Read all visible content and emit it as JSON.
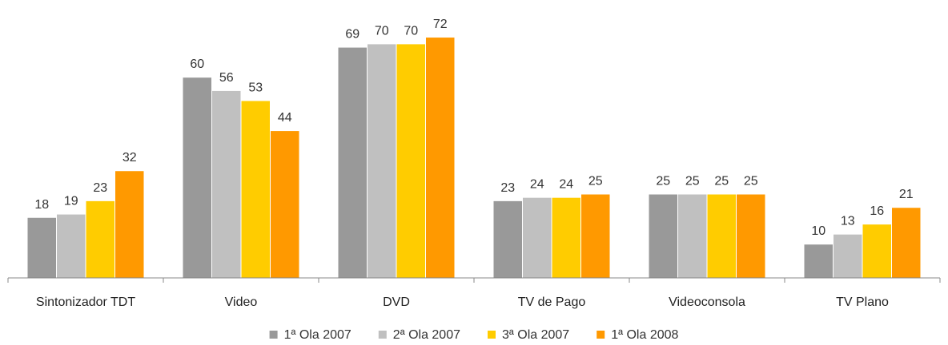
{
  "chart_data": {
    "type": "bar",
    "categories": [
      "Sintonizador TDT",
      "Video",
      "DVD",
      "TV de Pago",
      "Videoconsola",
      "TV Plano"
    ],
    "series": [
      {
        "name": "1ª Ola 2007",
        "color": "#999999",
        "values": [
          18,
          60,
          69,
          23,
          25,
          10
        ]
      },
      {
        "name": "2ª Ola 2007",
        "color": "#c0c0c0",
        "values": [
          19,
          56,
          70,
          24,
          25,
          13
        ]
      },
      {
        "name": "3ª Ola 2007",
        "color": "#ffcc00",
        "values": [
          23,
          53,
          70,
          24,
          25,
          16
        ]
      },
      {
        "name": "1ª Ola 2008",
        "color": "#ff9900",
        "values": [
          32,
          44,
          72,
          25,
          25,
          21
        ]
      }
    ],
    "ylim": [
      0,
      75
    ],
    "grid": false,
    "legend": "bottom",
    "data_labels": true
  }
}
